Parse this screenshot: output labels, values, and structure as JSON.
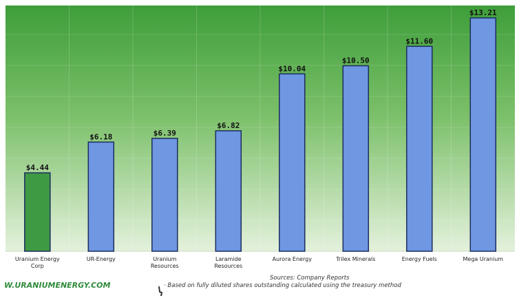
{
  "chart_data": {
    "type": "bar",
    "categories": [
      [
        "Uranium Energy",
        "Corp"
      ],
      [
        "UR-Energy"
      ],
      [
        "Uranium",
        "Resources"
      ],
      [
        "Laramide",
        "Resources"
      ],
      [
        "Aurora Energy"
      ],
      [
        "Trilex Minerals"
      ],
      [
        "Energy Fuels"
      ],
      [
        "Mega Uranium"
      ]
    ],
    "values": [
      4.44,
      6.18,
      6.39,
      6.82,
      10.04,
      10.5,
      11.6,
      13.21
    ],
    "value_labels": [
      "$4.44",
      "$6.18",
      "$6.39",
      "$6.82",
      "$10.04",
      "$10.50",
      "$11.60",
      "$13.21"
    ],
    "ylim": [
      0,
      13.21
    ],
    "grid": true,
    "highlight_index": 0,
    "colors": {
      "highlight_bar": "#3f9a44",
      "bar": "#6f97e2",
      "bar_edge": "#1c2c5e",
      "background_top": "#3e9e3a",
      "background_bottom": "#e4f1dc"
    }
  },
  "footer": {
    "website": "W.URANIUMENERGY.COM",
    "sources": "Sources: Company Reports",
    "note": "·  Based on fully diluted shares outstanding calculated using the treasury method"
  }
}
